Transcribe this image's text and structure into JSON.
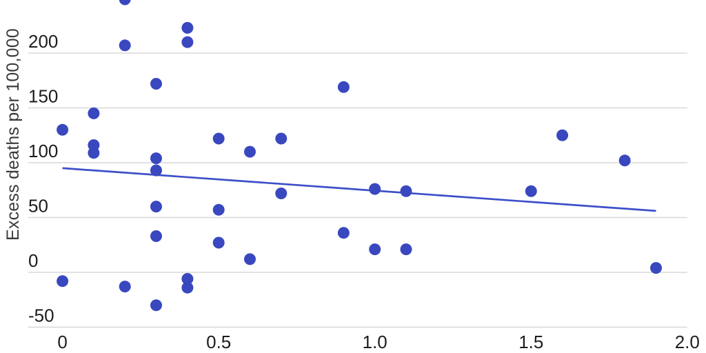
{
  "chart_data": {
    "type": "scatter",
    "ylabel": "Excess deaths per 100,000",
    "x_ticks": {
      "values": [
        0,
        0.5,
        1.0,
        1.5,
        2.0
      ],
      "labels": [
        "0",
        "0.5",
        "1.0",
        "1.5",
        "2.0"
      ]
    },
    "y_ticks": {
      "values": [
        -50,
        0,
        50,
        100,
        150,
        200
      ],
      "labels": [
        "-50",
        "0",
        "50",
        "100",
        "150",
        "200"
      ]
    },
    "xlim": [
      -0.2,
      2.06
    ],
    "ylim": [
      -73.6,
      248.4
    ],
    "grid": "horizontal-only",
    "legend": "none",
    "points": [
      [
        0,
        130
      ],
      [
        0,
        -8
      ],
      [
        0.1,
        145
      ],
      [
        0.1,
        116
      ],
      [
        0.1,
        109
      ],
      [
        0.2,
        249
      ],
      [
        0.2,
        207
      ],
      [
        0.2,
        -13
      ],
      [
        0.3,
        172
      ],
      [
        0.3,
        104
      ],
      [
        0.3,
        93
      ],
      [
        0.3,
        60
      ],
      [
        0.3,
        33
      ],
      [
        0.3,
        -30
      ],
      [
        0.4,
        223
      ],
      [
        0.4,
        210
      ],
      [
        0.4,
        -6
      ],
      [
        0.4,
        -14
      ],
      [
        0.5,
        122
      ],
      [
        0.5,
        57
      ],
      [
        0.5,
        27
      ],
      [
        0.6,
        110
      ],
      [
        0.6,
        12
      ],
      [
        0.7,
        122
      ],
      [
        0.7,
        72
      ],
      [
        0.9,
        169
      ],
      [
        0.9,
        36
      ],
      [
        1.0,
        76
      ],
      [
        1.0,
        21
      ],
      [
        1.1,
        74
      ],
      [
        1.1,
        21
      ],
      [
        1.5,
        74
      ],
      [
        1.6,
        125
      ],
      [
        1.8,
        102
      ],
      [
        1.9,
        4
      ]
    ],
    "trend_line": {
      "start": [
        0,
        95
      ],
      "end": [
        1.9,
        56
      ]
    },
    "colors": {
      "point": "#3948be",
      "trend": "#3d4fc9",
      "gridline": "#d8d8d8",
      "tick_text": "#1d1d1d",
      "axis_title": "#3a3a3a",
      "background": "#ffffff"
    }
  }
}
